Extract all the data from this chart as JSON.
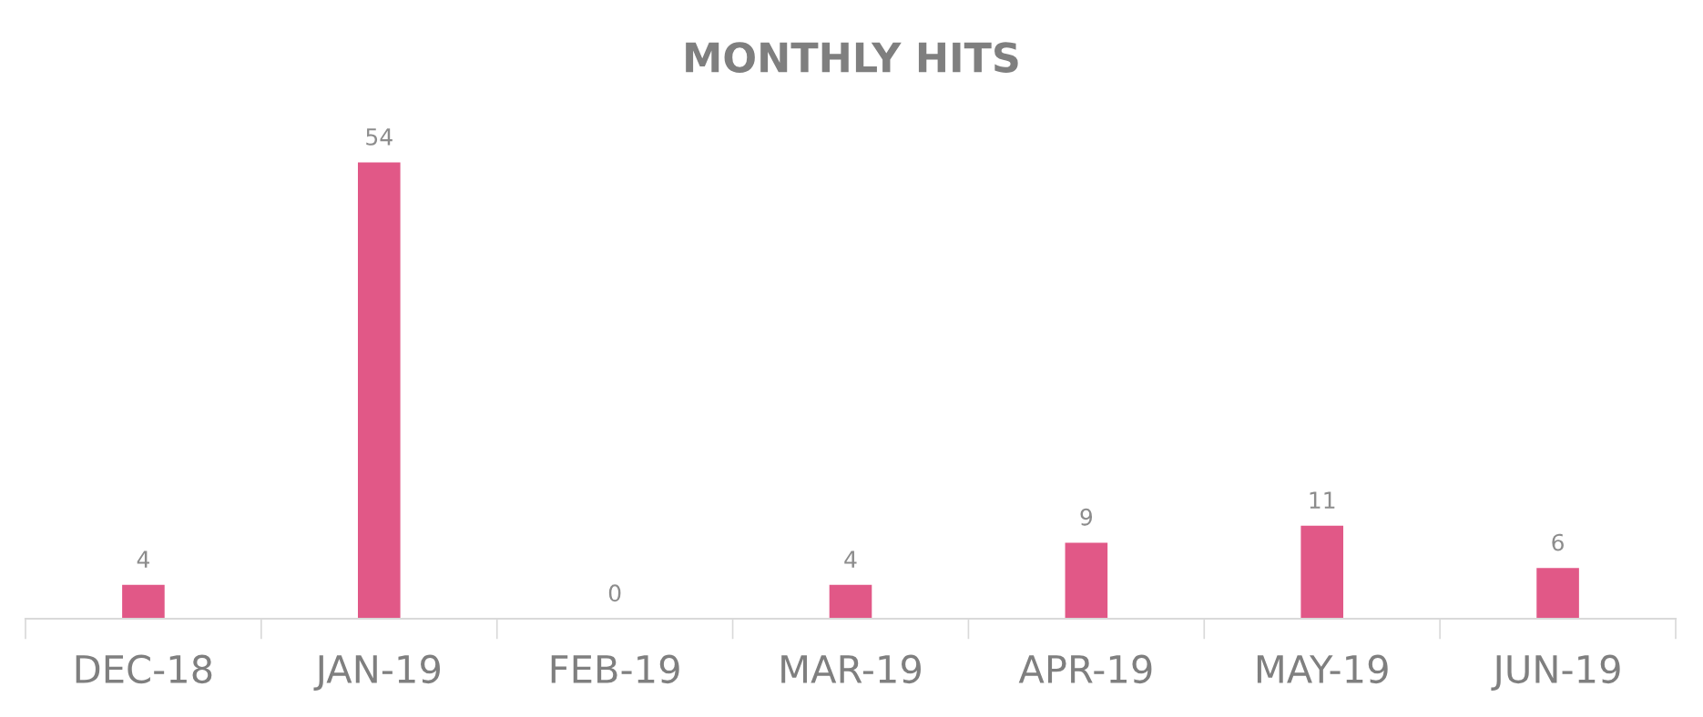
{
  "chart_data": {
    "type": "bar",
    "title": "MONTHLY HITS",
    "categories": [
      "DEC-18",
      "JAN-19",
      "FEB-19",
      "MAR-19",
      "APR-19",
      "MAY-19",
      "JUN-19"
    ],
    "values": [
      4,
      54,
      0,
      4,
      9,
      11,
      6
    ],
    "color": "#e15887",
    "data_labels": true
  }
}
